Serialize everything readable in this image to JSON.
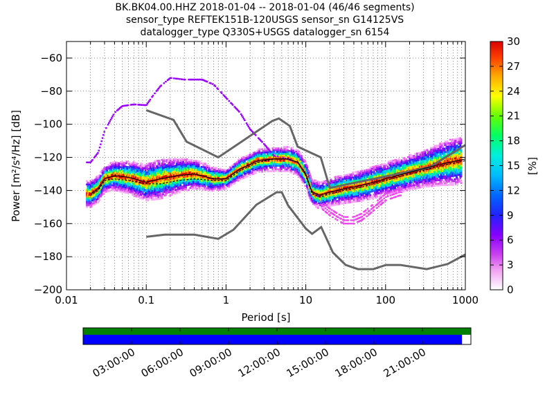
{
  "titles": [
    "BK.BK04.00.HHZ   2018-01-04 -- 2018-01-04  (46/46 segments)",
    "sensor_type REFTEK151B-120USGS sensor_sn G14125VS",
    "datalogger_type Q330S+USGS datalogger_sn 6154"
  ],
  "chart_data": {
    "type": "heatmap",
    "xlabel": "Period [s]",
    "ylabel": "Power [m²/s⁴/Hz] [dB]",
    "x_scale": "log",
    "xlim": [
      0.01,
      1000
    ],
    "ylim": [
      -200,
      -50
    ],
    "x_ticks": [
      0.01,
      0.1,
      1,
      10,
      100,
      1000
    ],
    "x_tick_labels": [
      "0.01",
      "0.1",
      "1",
      "10",
      "100",
      "1000"
    ],
    "y_ticks": [
      -200,
      -180,
      -160,
      -140,
      -120,
      -100,
      -80,
      -60
    ],
    "grid": "dotted",
    "colorbar": {
      "label": "[%]",
      "min": 0,
      "max": 30,
      "ticks": [
        0,
        3,
        6,
        9,
        12,
        15,
        18,
        21,
        24,
        27,
        30
      ]
    },
    "noise_models": {
      "high": {
        "period": [
          0.1,
          0.22,
          0.32,
          0.8,
          3.8,
          4.6,
          6.3,
          7.9,
          15.4,
          20,
          354.8,
          1000
        ],
        "db": [
          -91.5,
          -97.4,
          -110.5,
          -120,
          -98,
          -96.5,
          -101,
          -113.5,
          -120,
          -138.5,
          -126,
          -112.5
        ]
      },
      "low": {
        "period": [
          0.1,
          0.17,
          0.4,
          0.8,
          1.24,
          2.4,
          4.3,
          5,
          6,
          10,
          12,
          15.6,
          21.9,
          31.6,
          45,
          70,
          101,
          154,
          328,
          600,
          1000
        ],
        "db": [
          -168,
          -166.7,
          -166.7,
          -169.2,
          -163.7,
          -148.6,
          -141.1,
          -141.1,
          -149,
          -163,
          -166.2,
          -162.1,
          -177.5,
          -185,
          -187.5,
          -187.5,
          -185,
          -185,
          -187.5,
          -184.4,
          -178.7
        ]
      }
    },
    "median": {
      "period": [
        0.02,
        0.025,
        0.03,
        0.04,
        0.06,
        0.1,
        0.15,
        0.25,
        0.4,
        0.7,
        1,
        1.5,
        2.5,
        4,
        6,
        8,
        10,
        12,
        15,
        20,
        30,
        50,
        100,
        200,
        500,
        1000
      ],
      "db": [
        -142,
        -139,
        -133,
        -131,
        -132,
        -135,
        -133,
        -131,
        -130,
        -133,
        -133,
        -127,
        -122,
        -121,
        -121,
        -123,
        -130,
        -141,
        -143,
        -141,
        -139,
        -137,
        -133,
        -129,
        -124,
        -121
      ]
    },
    "mode": {
      "period": [
        0.02,
        0.025,
        0.03,
        0.04,
        0.06,
        0.1,
        0.15,
        0.25,
        0.4,
        0.7,
        1,
        1.5,
        2.5,
        4,
        6,
        8,
        10,
        12,
        15,
        20,
        30,
        50,
        100,
        200,
        500,
        1000
      ],
      "db": [
        -143,
        -140,
        -134,
        -133,
        -134,
        -136,
        -136,
        -134,
        -133,
        -134,
        -134,
        -128,
        -123,
        -121,
        -121,
        -123,
        -131,
        -142,
        -144,
        -142,
        -140,
        -138,
        -134,
        -130,
        -125,
        -122
      ]
    },
    "upper_envelope": {
      "period": [
        0.02,
        0.025,
        0.03,
        0.04,
        0.05,
        0.07,
        0.1,
        0.12,
        0.15,
        0.2,
        0.3,
        0.5,
        0.7,
        1,
        1.5,
        2,
        3,
        4,
        5,
        6,
        8,
        10,
        12,
        15
      ],
      "db": [
        -123,
        -117,
        -104,
        -93,
        -89,
        -88,
        -88.5,
        -83,
        -77,
        -72,
        -73,
        -73,
        -76,
        -84,
        -93,
        -103,
        -112,
        -119,
        -120,
        -121,
        -123,
        -130,
        -141,
        -144
      ]
    },
    "lower_hump": {
      "period": [
        15,
        20,
        25,
        30,
        40,
        50,
        60,
        80,
        100,
        150
      ],
      "db": [
        -150,
        -155,
        -158,
        -160,
        -160,
        -158,
        -155,
        -150,
        -146,
        -143
      ]
    },
    "spread_width_db": [
      {
        "period": 0.03,
        "half_width": 6
      },
      {
        "period": 0.15,
        "half_width": 10
      },
      {
        "period": 1,
        "half_width": 4
      },
      {
        "period": 3,
        "half_width": 5
      },
      {
        "period": 15,
        "half_width": 6
      },
      {
        "period": 300,
        "half_width": 9
      },
      {
        "period": 700,
        "half_width": 12
      }
    ]
  },
  "availability": {
    "time_labels": [
      "03:00:00",
      "06:00:00",
      "09:00:00",
      "12:00:00",
      "15:00:00",
      "18:00:00",
      "21:00:00"
    ],
    "data_fraction": 1.0,
    "used_fraction": 0.977,
    "data_color": "#008000",
    "used_color": "#0000ff"
  },
  "colors": {
    "noise_model": "#666666",
    "median": "#000000"
  }
}
